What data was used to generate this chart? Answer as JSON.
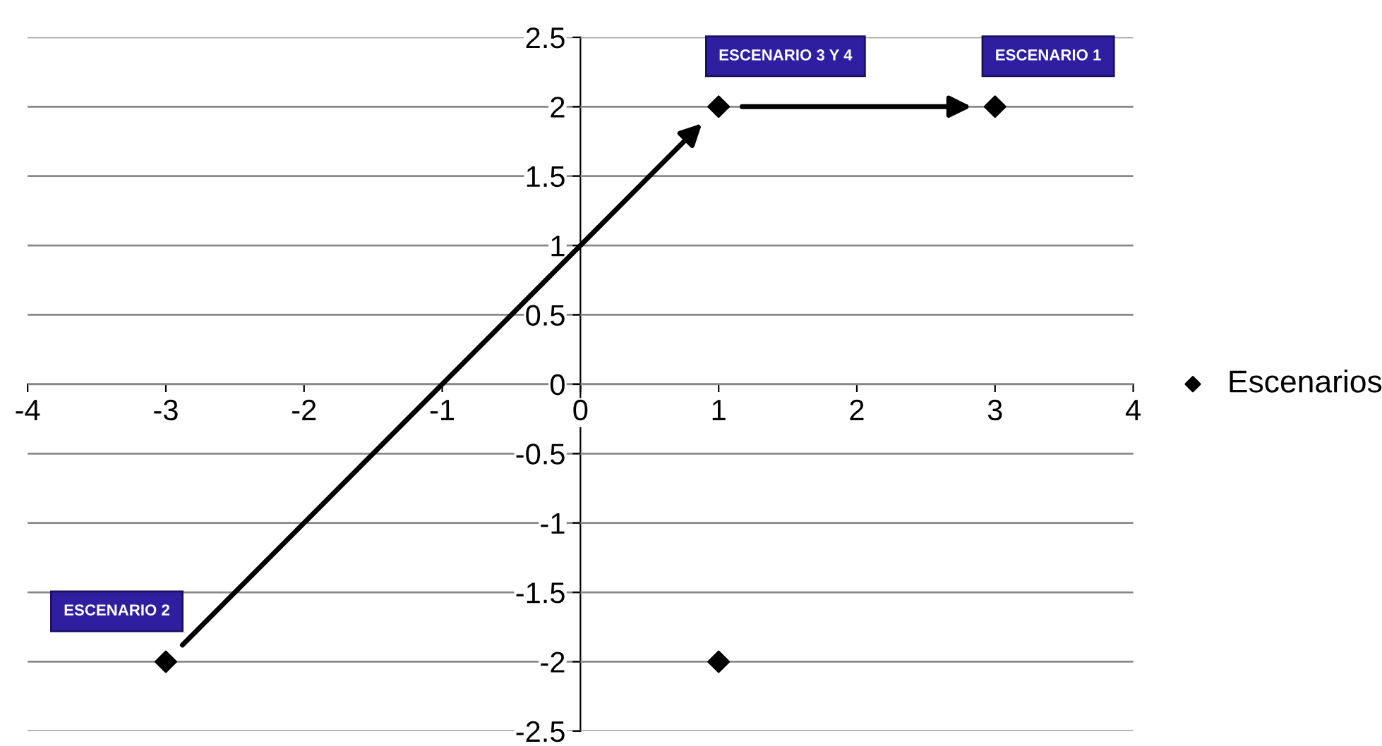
{
  "chart_data": {
    "type": "scatter",
    "x": [
      -3,
      1,
      3,
      1
    ],
    "series": [
      {
        "name": "Escenarios",
        "color": "#000000",
        "values": [
          -2,
          2,
          2,
          -2
        ]
      }
    ],
    "xlim": [
      -4,
      4
    ],
    "ylim": [
      -2.5,
      2.5
    ],
    "xticks": [
      -4,
      -3,
      -2,
      -1,
      0,
      1,
      2,
      3,
      4
    ],
    "yticks": [
      -2.5,
      -2,
      -1.5,
      -1,
      -0.5,
      0,
      0.5,
      1,
      1.5,
      2,
      2.5
    ],
    "grid": "y",
    "legend": "right",
    "marker": "diamond",
    "annotations": [
      {
        "text": "ESCENARIO 3 Y 4",
        "x": 1,
        "y": 2
      },
      {
        "text": "ESCENARIO 1",
        "x": 3,
        "y": 2
      },
      {
        "text": "ESCENARIO 2",
        "x": -3,
        "y": -2
      }
    ]
  }
}
